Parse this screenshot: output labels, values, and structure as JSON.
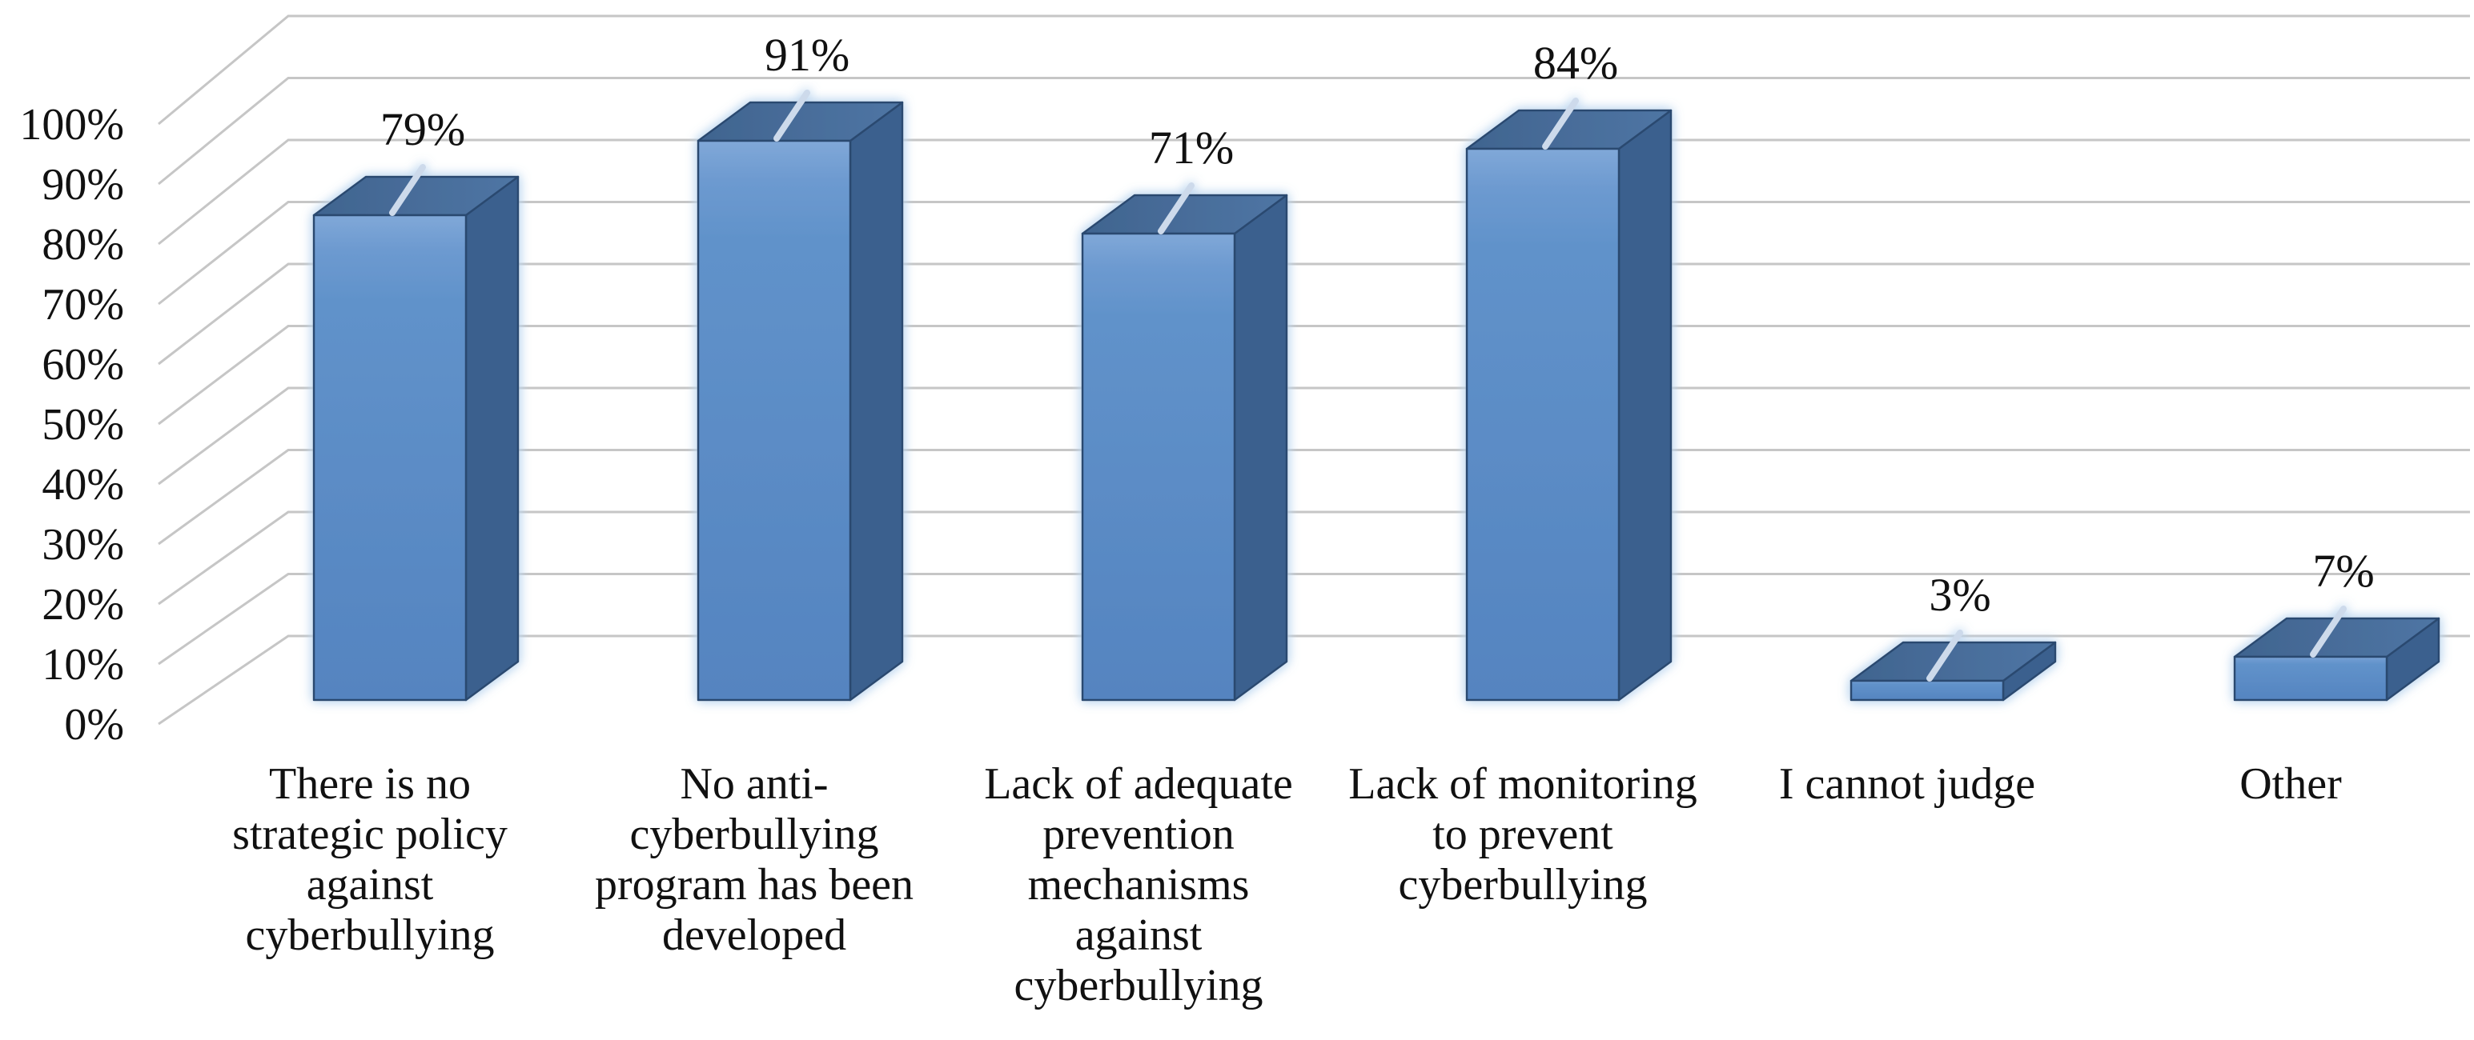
{
  "chart_data": {
    "type": "bar",
    "title": "",
    "xlabel": "",
    "ylabel": "",
    "ylim": [
      0,
      100
    ],
    "grid": true,
    "legend": "none",
    "style_3d": true,
    "y_ticks": [
      "0%",
      "10%",
      "20%",
      "30%",
      "40%",
      "50%",
      "60%",
      "70%",
      "80%",
      "90%",
      "100%"
    ],
    "categories": [
      {
        "label": "There is no strategic policy against cyberbullying",
        "lines": [
          "There is no",
          "strategic policy",
          "against",
          "cyberbullying"
        ]
      },
      {
        "label": "No anti-cyberbullying program has been developed",
        "lines": [
          "No anti-",
          "cyberbullying",
          "program has been",
          "developed"
        ]
      },
      {
        "label": "Lack of adequate prevention mechanisms against cyberbullying",
        "lines": [
          "Lack of adequate",
          "prevention",
          "mechanisms",
          "against",
          "cyberbullying"
        ]
      },
      {
        "label": "Lack of monitoring to prevent cyberbullying",
        "lines": [
          "Lack of monitoring",
          "to prevent",
          "cyberbullying"
        ]
      },
      {
        "label": "I cannot judge",
        "lines": [
          "I cannot judge"
        ]
      },
      {
        "label": "Other",
        "lines": [
          "Other"
        ]
      }
    ],
    "values": [
      79,
      91,
      71,
      84,
      3,
      7
    ],
    "data_labels": [
      "79%",
      "91%",
      "71%",
      "84%",
      "3%",
      "7%"
    ],
    "colors": {
      "bar_front": "#5b8cc6",
      "bar_front_light": "#80a8d8",
      "bar_top_dark": "#40648f",
      "bar_top_light": "#4f75a4",
      "bar_side": "#3b608e",
      "bar_outline": "#2c4a70",
      "gleam": "#cddaeb",
      "gridline": "#c6c6c6",
      "text": "#111111",
      "background": "#ffffff"
    }
  }
}
